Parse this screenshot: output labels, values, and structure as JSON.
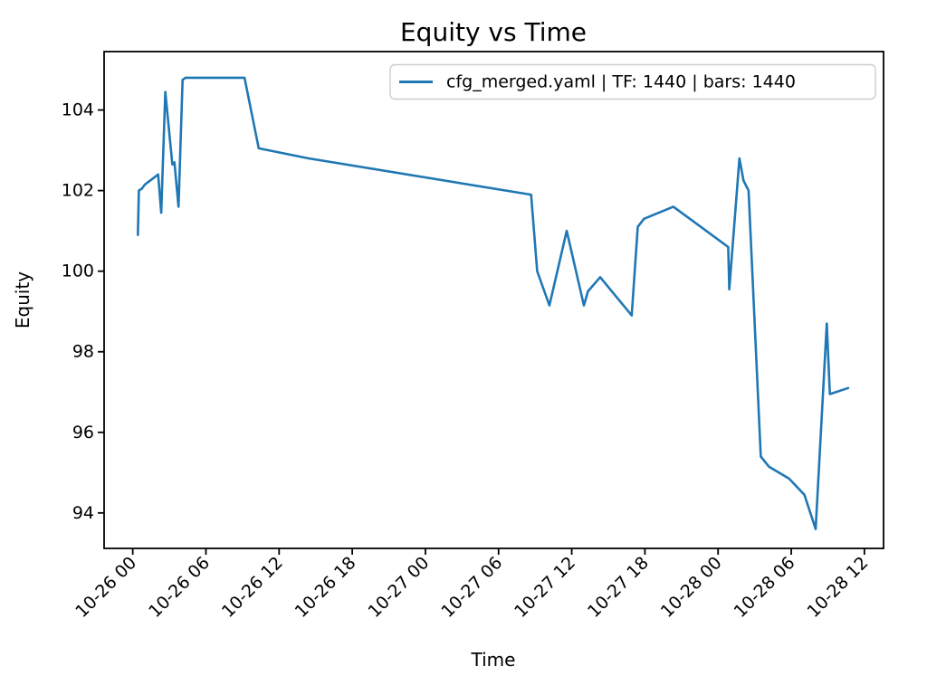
{
  "figure": {
    "background": "#ffffff",
    "text_color": "#000000"
  },
  "chart_data": {
    "type": "line",
    "title": "Equity vs Time",
    "xlabel": "Time",
    "ylabel": "Equity",
    "grid": false,
    "legend": {
      "position": "upper right",
      "entries": [
        {
          "label": "cfg_merged.yaml | TF: 1440 | bars: 1440",
          "color": "#1f77b4"
        }
      ]
    },
    "x_axis": {
      "origin": "10-26 00:00",
      "tick_labels": [
        "10-26 00",
        "10-26 06",
        "10-26 12",
        "10-26 18",
        "10-27 00",
        "10-27 06",
        "10-27 12",
        "10-27 18",
        "10-28 00",
        "10-28 06",
        "10-28 12"
      ],
      "tick_hours": [
        0,
        6,
        12,
        18,
        24,
        30,
        36,
        42,
        48,
        54,
        60
      ],
      "range_hours": [
        -2.35,
        61.57
      ]
    },
    "y_axis": {
      "ticks": [
        94,
        96,
        98,
        100,
        102,
        104
      ],
      "range": [
        93.12,
        105.45
      ]
    },
    "series": [
      {
        "name": "cfg_merged.yaml | TF: 1440 | bars: 1440",
        "color": "#1f77b4",
        "points": [
          [
            "10-26 00:25",
            100.9
          ],
          [
            "10-26 00:30",
            102.0
          ],
          [
            "10-26 00:45",
            102.05
          ],
          [
            "10-26 01:00",
            102.15
          ],
          [
            "10-26 02:05",
            102.4
          ],
          [
            "10-26 02:20",
            101.45
          ],
          [
            "10-26 02:40",
            104.45
          ],
          [
            "10-26 03:15",
            102.65
          ],
          [
            "10-26 03:25",
            102.7
          ],
          [
            "10-26 03:45",
            101.6
          ],
          [
            "10-26 04:05",
            104.75
          ],
          [
            "10-26 04:20",
            104.8
          ],
          [
            "10-26 09:10",
            104.8
          ],
          [
            "10-26 10:20",
            103.05
          ],
          [
            "10-26 14:25",
            102.8
          ],
          [
            "10-27 08:40",
            101.9
          ],
          [
            "10-27 09:10",
            100.0
          ],
          [
            "10-27 10:10",
            99.15
          ],
          [
            "10-27 11:35",
            101.0
          ],
          [
            "10-27 13:00",
            99.15
          ],
          [
            "10-27 13:20",
            99.5
          ],
          [
            "10-27 14:20",
            99.85
          ],
          [
            "10-27 16:55",
            98.9
          ],
          [
            "10-27 17:25",
            101.1
          ],
          [
            "10-27 17:55",
            101.3
          ],
          [
            "10-27 20:20",
            101.6
          ],
          [
            "10-28 00:50",
            100.6
          ],
          [
            "10-28 00:55",
            99.55
          ],
          [
            "10-28 01:45",
            102.8
          ],
          [
            "10-28 02:05",
            102.25
          ],
          [
            "10-28 02:30",
            102.0
          ],
          [
            "10-28 03:30",
            95.4
          ],
          [
            "10-28 04:10",
            95.15
          ],
          [
            "10-28 05:50",
            94.85
          ],
          [
            "10-28 07:05",
            94.45
          ],
          [
            "10-28 08:00",
            93.6
          ],
          [
            "10-28 08:55",
            98.7
          ],
          [
            "10-28 09:10",
            96.95
          ],
          [
            "10-28 10:40",
            97.1
          ]
        ]
      }
    ]
  }
}
